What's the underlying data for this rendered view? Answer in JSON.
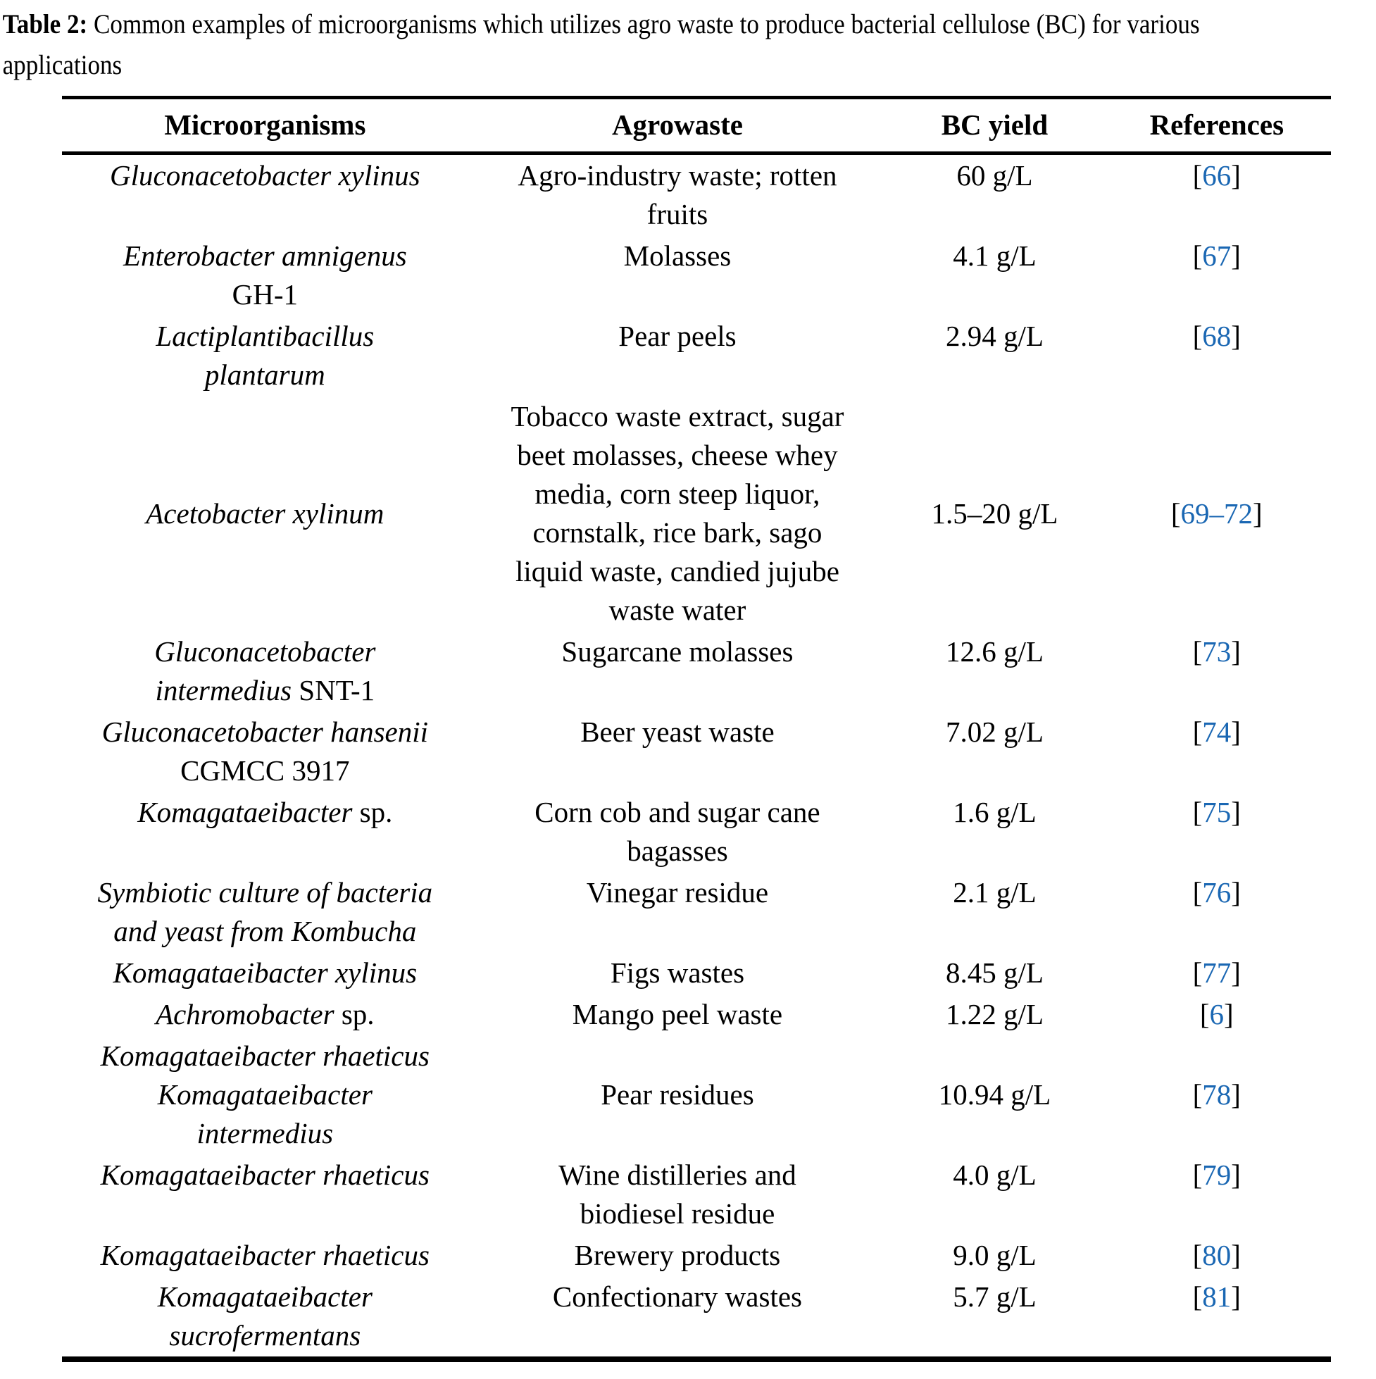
{
  "caption": {
    "label": "Table 2:",
    "text": "Common examples of microorganisms which utilizes agro waste to produce bacterial cellulose (BC) for various\napplications"
  },
  "colors": {
    "link": "#1a67b3",
    "text": "#000000"
  },
  "table": {
    "headers": [
      "Microorganisms",
      "Agrowaste",
      "BC yield",
      "References"
    ],
    "rows": [
      {
        "microorganism": [
          {
            "text": "Gluconacetobacter xylinus",
            "italic": true
          }
        ],
        "agrowaste": "Agro-industry waste; rotten\nfruits",
        "bc_yield": "60 g/L",
        "reference": "66",
        "valign": "top"
      },
      {
        "microorganism": [
          {
            "text": "Enterobacter amnigenus",
            "italic": true
          },
          {
            "text": "\nGH-1",
            "italic": false
          }
        ],
        "agrowaste": "Molasses",
        "bc_yield": "4.1 g/L",
        "reference": "67",
        "valign": "top"
      },
      {
        "microorganism": [
          {
            "text": "Lactiplantibacillus\nplantarum",
            "italic": true
          }
        ],
        "agrowaste": "Pear peels",
        "bc_yield": "2.94 g/L",
        "reference": "68",
        "valign": "top"
      },
      {
        "microorganism": [
          {
            "text": "Acetobacter xylinum",
            "italic": true
          }
        ],
        "agrowaste": "Tobacco waste extract, sugar\nbeet molasses, cheese whey\nmedia, corn steep liquor,\ncornstalk, rice bark, sago\nliquid waste, candied jujube\nwaste water",
        "bc_yield": "1.5–20 g/L",
        "reference": "69–72",
        "valign": "middle"
      },
      {
        "microorganism": [
          {
            "text": "Gluconacetobacter\nintermedius",
            "italic": true
          },
          {
            "text": " SNT-1",
            "italic": false
          }
        ],
        "agrowaste": "Sugarcane molasses",
        "bc_yield": "12.6 g/L",
        "reference": "73",
        "valign": "top"
      },
      {
        "microorganism": [
          {
            "text": "Gluconacetobacter hansenii",
            "italic": true
          },
          {
            "text": "\nCGMCC 3917",
            "italic": false
          }
        ],
        "agrowaste": "Beer yeast waste",
        "bc_yield": "7.02 g/L",
        "reference": "74",
        "valign": "top"
      },
      {
        "microorganism": [
          {
            "text": "Komagataeibacter",
            "italic": true
          },
          {
            "text": " sp.",
            "italic": false
          }
        ],
        "agrowaste": "Corn cob and sugar cane\nbagasses",
        "bc_yield": "1.6 g/L",
        "reference": "75",
        "valign": "top"
      },
      {
        "microorganism": [
          {
            "text": "Symbiotic culture of bacteria\nand yeast from Kombucha",
            "italic": true
          }
        ],
        "agrowaste": "Vinegar residue",
        "bc_yield": "2.1 g/L",
        "reference": "76",
        "valign": "top"
      },
      {
        "microorganism": [
          {
            "text": "Komagataeibacter xylinus",
            "italic": true
          }
        ],
        "agrowaste": "Figs wastes",
        "bc_yield": "8.45 g/L",
        "reference": "77",
        "valign": "top"
      },
      {
        "microorganism": [
          {
            "text": "Achromobacter",
            "italic": true
          },
          {
            "text": " sp.",
            "italic": false
          }
        ],
        "agrowaste": "Mango peel waste",
        "bc_yield": "1.22 g/L",
        "reference": "6",
        "valign": "top"
      },
      {
        "microorganism": [
          {
            "text": "Komagataeibacter rhaeticus\nKomagataeibacter\nintermedius",
            "italic": true
          }
        ],
        "agrowaste": "Pear residues",
        "bc_yield": "10.94 g/L",
        "reference": "78",
        "valign": "middle"
      },
      {
        "microorganism": [
          {
            "text": "Komagataeibacter rhaeticus",
            "italic": true
          }
        ],
        "agrowaste": "Wine distilleries and\nbiodiesel residue",
        "bc_yield": "4.0 g/L",
        "reference": "79",
        "valign": "top"
      },
      {
        "microorganism": [
          {
            "text": "Komagataeibacter rhaeticus",
            "italic": true
          }
        ],
        "agrowaste": "Brewery products",
        "bc_yield": "9.0 g/L",
        "reference": "80",
        "valign": "top"
      },
      {
        "microorganism": [
          {
            "text": "Komagataeibacter\nsucrofermentans",
            "italic": true
          }
        ],
        "agrowaste": "Confectionary wastes",
        "bc_yield": "5.7 g/L",
        "reference": "81",
        "valign": "top"
      }
    ]
  }
}
